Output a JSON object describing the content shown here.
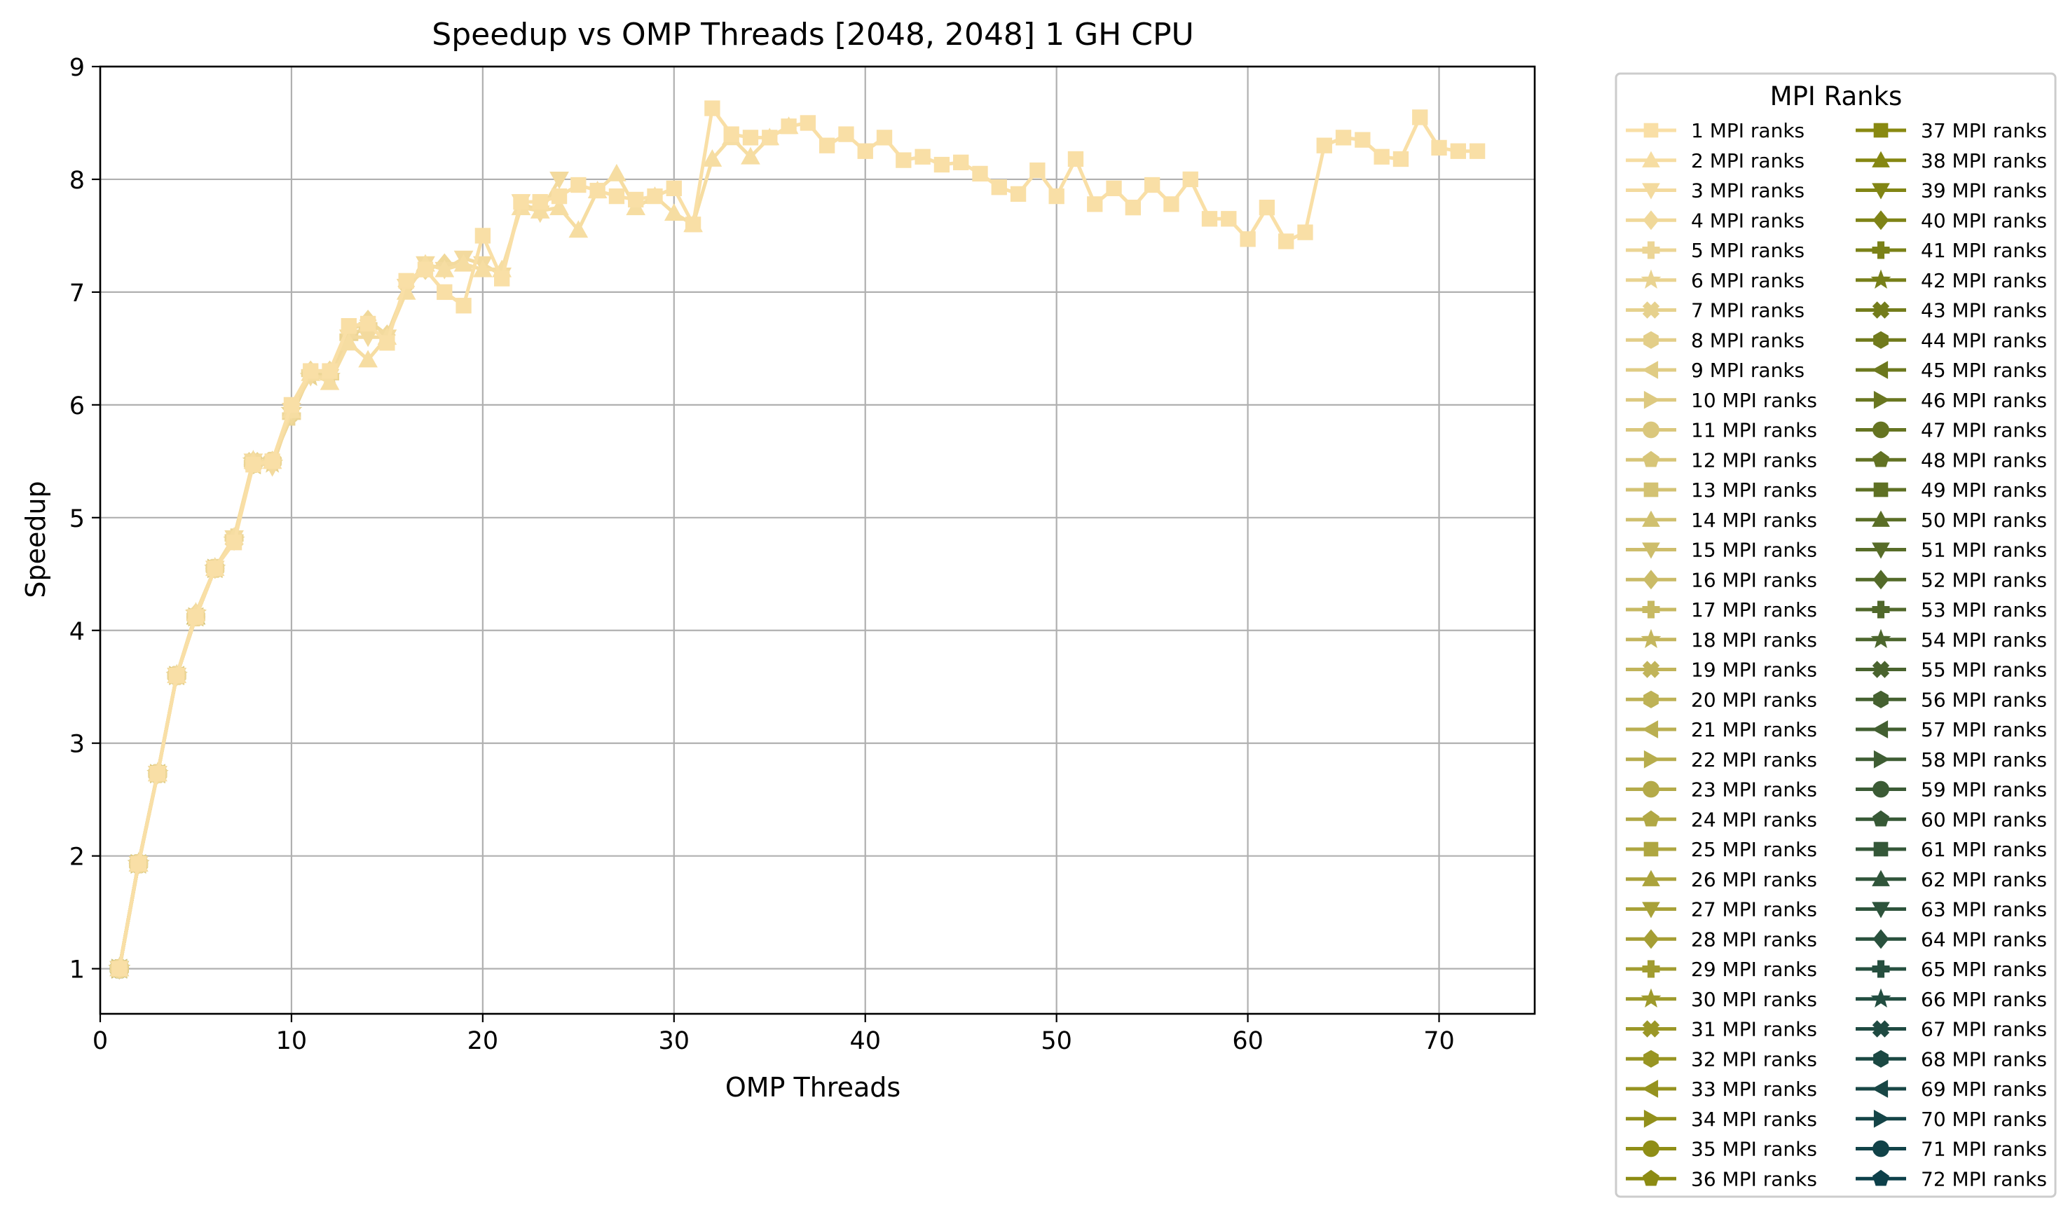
{
  "chart_data": {
    "type": "line",
    "title": "Speedup vs OMP Threads [2048, 2048] 1 GH CPU",
    "xlabel": "OMP Threads",
    "ylabel": "Speedup",
    "xlim": [
      0,
      75
    ],
    "ylim": [
      0.6,
      9.0
    ],
    "xticks": [
      0,
      10,
      20,
      30,
      40,
      50,
      60,
      70
    ],
    "yticks": [
      1,
      2,
      3,
      4,
      5,
      6,
      7,
      8,
      9
    ],
    "grid": true,
    "legend": {
      "title": "MPI Ranks",
      "placement": "outside right",
      "columns": 2
    },
    "series_colors": {
      "first": "#F9DFA6",
      "mid": "#8A8A10",
      "last": "#0D404A"
    },
    "series": [
      {
        "name": "1 MPI ranks",
        "x": [
          1,
          2,
          3,
          4,
          5,
          6,
          7,
          8,
          9,
          10,
          11,
          12,
          13,
          14,
          15,
          16,
          17,
          18,
          19,
          20,
          21,
          22,
          23,
          24,
          25,
          26,
          27,
          28,
          29,
          30,
          31,
          32,
          33,
          34,
          35,
          36,
          37,
          38,
          39,
          40,
          41,
          42,
          43,
          44,
          45,
          46,
          47,
          48,
          49,
          50,
          51,
          52,
          53,
          54,
          55,
          56,
          57,
          58,
          59,
          60,
          61,
          62,
          63,
          64,
          65,
          66,
          67,
          68,
          69,
          70,
          71,
          72
        ],
        "y": [
          1.0,
          1.93,
          2.73,
          3.6,
          4.12,
          4.55,
          4.78,
          5.47,
          5.5,
          6.0,
          6.3,
          6.3,
          6.7,
          6.72,
          6.55,
          7.1,
          7.2,
          7.0,
          6.88,
          7.5,
          7.12,
          7.8,
          7.8,
          7.85,
          7.95,
          7.9,
          7.85,
          7.82,
          7.85,
          7.92,
          7.6,
          8.63,
          8.4,
          8.37,
          8.37,
          8.47,
          8.5,
          8.3,
          8.4,
          8.25,
          8.37,
          8.17,
          8.2,
          8.13,
          8.15,
          8.05,
          7.93,
          7.87,
          8.08,
          7.85,
          8.18,
          7.78,
          7.92,
          7.75,
          7.95,
          7.78,
          8.0,
          7.65,
          7.65,
          7.47,
          7.75,
          7.45,
          7.53,
          8.3,
          8.37,
          8.35,
          8.2,
          8.18,
          8.55,
          8.28,
          8.25,
          8.25
        ]
      },
      {
        "name": "2 MPI ranks",
        "x": [
          1,
          2,
          3,
          4,
          5,
          6,
          7,
          8,
          9,
          10,
          11,
          12,
          13,
          14,
          15,
          16,
          17,
          18,
          19,
          20,
          21,
          22,
          23,
          24,
          25,
          26,
          27,
          28,
          29,
          30,
          31,
          32,
          33,
          34,
          35,
          36
        ],
        "y": [
          1.0,
          1.93,
          2.73,
          3.6,
          4.15,
          4.55,
          4.83,
          5.5,
          5.5,
          5.95,
          6.28,
          6.2,
          6.55,
          6.4,
          6.6,
          7.0,
          7.25,
          7.2,
          7.25,
          7.2,
          7.2,
          7.75,
          7.72,
          7.75,
          7.55,
          7.9,
          8.05,
          7.75,
          7.85,
          7.7,
          7.6,
          8.18,
          8.37,
          8.2,
          8.37,
          8.47
        ]
      },
      {
        "name": "3 MPI ranks",
        "x": [
          1,
          2,
          3,
          4,
          5,
          6,
          7,
          8,
          9,
          10,
          11,
          12,
          13,
          14,
          15,
          16,
          17,
          18,
          19,
          20,
          21,
          22,
          23,
          24
        ],
        "y": [
          1.0,
          1.93,
          2.73,
          3.6,
          4.12,
          4.55,
          4.82,
          5.5,
          5.45,
          5.95,
          6.25,
          6.25,
          6.6,
          6.6,
          6.6,
          7.05,
          7.25,
          7.2,
          7.3,
          7.25,
          7.15,
          7.8,
          7.7,
          8.0
        ]
      },
      {
        "name": "4 MPI ranks",
        "x": [
          1,
          2,
          3,
          4,
          5,
          6,
          7,
          8,
          9,
          10,
          11,
          12,
          13,
          14,
          15,
          16,
          17,
          18
        ],
        "y": [
          1.0,
          1.93,
          2.73,
          3.6,
          4.15,
          4.55,
          4.8,
          5.5,
          5.5,
          5.92,
          6.3,
          6.3,
          6.65,
          6.75,
          6.62,
          7.05,
          7.2,
          7.25
        ]
      },
      {
        "name": "5 MPI ranks",
        "x": [
          1,
          2,
          3,
          4,
          5,
          6,
          7,
          8,
          9,
          10,
          11,
          12,
          13,
          14
        ],
        "y": [
          1.0,
          1.93,
          2.73,
          3.6,
          4.12,
          4.55,
          4.82,
          5.48,
          5.5,
          5.9,
          6.28,
          6.25,
          6.6,
          6.7
        ]
      },
      {
        "name": "6 MPI ranks",
        "x": [
          1,
          2,
          3,
          4,
          5,
          6,
          7,
          8,
          9,
          10,
          11,
          12
        ],
        "y": [
          1.0,
          1.93,
          2.73,
          3.6,
          4.15,
          4.55,
          4.8,
          5.5,
          5.48,
          5.95,
          6.25,
          6.25
        ]
      },
      {
        "name": "7 MPI ranks",
        "x": [
          1,
          2,
          3,
          4,
          5,
          6,
          7,
          8,
          9,
          10
        ],
        "y": [
          1.0,
          1.93,
          2.73,
          3.6,
          4.12,
          4.55,
          4.8,
          5.5,
          5.5,
          5.93
        ]
      },
      {
        "name": "8 MPI ranks",
        "x": [
          1,
          2,
          3,
          4,
          5,
          6,
          7,
          8,
          9
        ],
        "y": [
          1.0,
          1.93,
          2.73,
          3.6,
          4.12,
          4.55,
          4.8,
          5.47,
          5.5
        ]
      },
      {
        "name": "9 MPI ranks",
        "x": [
          1,
          2,
          3,
          4,
          5,
          6,
          7,
          8
        ],
        "y": [
          1.0,
          1.93,
          2.73,
          3.6,
          4.12,
          4.55,
          4.8,
          5.47
        ]
      },
      {
        "name": "10 MPI ranks",
        "x": [
          1,
          2,
          3,
          4,
          5,
          6,
          7
        ],
        "y": [
          1.0,
          1.93,
          2.73,
          3.6,
          4.12,
          4.55,
          4.8
        ]
      },
      {
        "name": "11 MPI ranks",
        "x": [
          1,
          2,
          3,
          4,
          5,
          6
        ],
        "y": [
          1.0,
          1.93,
          2.73,
          3.6,
          4.12,
          4.55
        ]
      },
      {
        "name": "12 MPI ranks",
        "x": [
          1,
          2,
          3,
          4,
          5,
          6
        ],
        "y": [
          1.0,
          1.93,
          2.73,
          3.6,
          4.12,
          4.55
        ]
      },
      {
        "name": "13 MPI ranks",
        "x": [
          1,
          2,
          3,
          4,
          5
        ],
        "y": [
          1.0,
          1.93,
          2.73,
          3.6,
          4.12
        ]
      },
      {
        "name": "14 MPI ranks",
        "x": [
          1,
          2,
          3,
          4,
          5
        ],
        "y": [
          1.0,
          1.93,
          2.73,
          3.6,
          4.12
        ]
      },
      {
        "name": "15 MPI ranks",
        "x": [
          1,
          2,
          3,
          4
        ],
        "y": [
          1.0,
          1.93,
          2.73,
          3.6
        ]
      },
      {
        "name": "16 MPI ranks",
        "x": [
          1,
          2,
          3,
          4
        ],
        "y": [
          1.0,
          1.93,
          2.73,
          3.6
        ]
      },
      {
        "name": "17 MPI ranks",
        "x": [
          1,
          2,
          3,
          4
        ],
        "y": [
          1.0,
          1.93,
          2.73,
          3.6
        ]
      },
      {
        "name": "18 MPI ranks",
        "x": [
          1,
          2,
          3,
          4
        ],
        "y": [
          1.0,
          1.93,
          2.73,
          3.6
        ]
      },
      {
        "name": "19 MPI ranks",
        "x": [
          1,
          2,
          3
        ],
        "y": [
          1.0,
          1.93,
          2.73
        ]
      },
      {
        "name": "20 MPI ranks",
        "x": [
          1,
          2,
          3
        ],
        "y": [
          1.0,
          1.93,
          2.73
        ]
      },
      {
        "name": "21 MPI ranks",
        "x": [
          1,
          2,
          3
        ],
        "y": [
          1.0,
          1.93,
          2.73
        ]
      },
      {
        "name": "22 MPI ranks",
        "x": [
          1,
          2,
          3
        ],
        "y": [
          1.0,
          1.93,
          2.73
        ]
      },
      {
        "name": "23 MPI ranks",
        "x": [
          1,
          2,
          3
        ],
        "y": [
          1.0,
          1.93,
          2.73
        ]
      },
      {
        "name": "24 MPI ranks",
        "x": [
          1,
          2,
          3
        ],
        "y": [
          1.0,
          1.93,
          2.73
        ]
      },
      {
        "name": "25 MPI ranks",
        "x": [
          1,
          2
        ],
        "y": [
          1.0,
          1.93
        ]
      },
      {
        "name": "26 MPI ranks",
        "x": [
          1,
          2
        ],
        "y": [
          1.0,
          1.93
        ]
      },
      {
        "name": "27 MPI ranks",
        "x": [
          1,
          2
        ],
        "y": [
          1.0,
          1.93
        ]
      },
      {
        "name": "28 MPI ranks",
        "x": [
          1,
          2
        ],
        "y": [
          1.0,
          1.93
        ]
      },
      {
        "name": "29 MPI ranks",
        "x": [
          1,
          2
        ],
        "y": [
          1.0,
          1.93
        ]
      },
      {
        "name": "30 MPI ranks",
        "x": [
          1,
          2
        ],
        "y": [
          1.0,
          1.93
        ]
      },
      {
        "name": "31 MPI ranks",
        "x": [
          1,
          2
        ],
        "y": [
          1.0,
          1.93
        ]
      },
      {
        "name": "32 MPI ranks",
        "x": [
          1,
          2
        ],
        "y": [
          1.0,
          1.93
        ]
      },
      {
        "name": "33 MPI ranks",
        "x": [
          1,
          2
        ],
        "y": [
          1.0,
          1.93
        ]
      },
      {
        "name": "34 MPI ranks",
        "x": [
          1,
          2
        ],
        "y": [
          1.0,
          1.93
        ]
      },
      {
        "name": "35 MPI ranks",
        "x": [
          1,
          2
        ],
        "y": [
          1.0,
          1.93
        ]
      },
      {
        "name": "36 MPI ranks",
        "x": [
          1,
          2
        ],
        "y": [
          1.0,
          1.93
        ]
      },
      {
        "name": "37 MPI ranks",
        "x": [
          1
        ],
        "y": [
          1.0
        ]
      },
      {
        "name": "38 MPI ranks",
        "x": [
          1
        ],
        "y": [
          1.0
        ]
      },
      {
        "name": "39 MPI ranks",
        "x": [
          1
        ],
        "y": [
          1.0
        ]
      },
      {
        "name": "40 MPI ranks",
        "x": [
          1
        ],
        "y": [
          1.0
        ]
      },
      {
        "name": "41 MPI ranks",
        "x": [
          1
        ],
        "y": [
          1.0
        ]
      },
      {
        "name": "42 MPI ranks",
        "x": [
          1
        ],
        "y": [
          1.0
        ]
      },
      {
        "name": "43 MPI ranks",
        "x": [
          1
        ],
        "y": [
          1.0
        ]
      },
      {
        "name": "44 MPI ranks",
        "x": [
          1
        ],
        "y": [
          1.0
        ]
      },
      {
        "name": "45 MPI ranks",
        "x": [
          1
        ],
        "y": [
          1.0
        ]
      },
      {
        "name": "46 MPI ranks",
        "x": [
          1
        ],
        "y": [
          1.0
        ]
      },
      {
        "name": "47 MPI ranks",
        "x": [
          1
        ],
        "y": [
          1.0
        ]
      },
      {
        "name": "48 MPI ranks",
        "x": [
          1
        ],
        "y": [
          1.0
        ]
      },
      {
        "name": "49 MPI ranks",
        "x": [
          1
        ],
        "y": [
          1.0
        ]
      },
      {
        "name": "50 MPI ranks",
        "x": [
          1
        ],
        "y": [
          1.0
        ]
      },
      {
        "name": "51 MPI ranks",
        "x": [
          1
        ],
        "y": [
          1.0
        ]
      },
      {
        "name": "52 MPI ranks",
        "x": [
          1
        ],
        "y": [
          1.0
        ]
      },
      {
        "name": "53 MPI ranks",
        "x": [
          1
        ],
        "y": [
          1.0
        ]
      },
      {
        "name": "54 MPI ranks",
        "x": [
          1
        ],
        "y": [
          1.0
        ]
      },
      {
        "name": "55 MPI ranks",
        "x": [
          1
        ],
        "y": [
          1.0
        ]
      },
      {
        "name": "56 MPI ranks",
        "x": [
          1
        ],
        "y": [
          1.0
        ]
      },
      {
        "name": "57 MPI ranks",
        "x": [
          1
        ],
        "y": [
          1.0
        ]
      },
      {
        "name": "58 MPI ranks",
        "x": [
          1
        ],
        "y": [
          1.0
        ]
      },
      {
        "name": "59 MPI ranks",
        "x": [
          1
        ],
        "y": [
          1.0
        ]
      },
      {
        "name": "60 MPI ranks",
        "x": [
          1
        ],
        "y": [
          1.0
        ]
      },
      {
        "name": "61 MPI ranks",
        "x": [
          1
        ],
        "y": [
          1.0
        ]
      },
      {
        "name": "62 MPI ranks",
        "x": [
          1
        ],
        "y": [
          1.0
        ]
      },
      {
        "name": "63 MPI ranks",
        "x": [
          1
        ],
        "y": [
          1.0
        ]
      },
      {
        "name": "64 MPI ranks",
        "x": [
          1
        ],
        "y": [
          1.0
        ]
      },
      {
        "name": "65 MPI ranks",
        "x": [
          1
        ],
        "y": [
          1.0
        ]
      },
      {
        "name": "66 MPI ranks",
        "x": [
          1
        ],
        "y": [
          1.0
        ]
      },
      {
        "name": "67 MPI ranks",
        "x": [
          1
        ],
        "y": [
          1.0
        ]
      },
      {
        "name": "68 MPI ranks",
        "x": [
          1
        ],
        "y": [
          1.0
        ]
      },
      {
        "name": "69 MPI ranks",
        "x": [
          1
        ],
        "y": [
          1.0
        ]
      },
      {
        "name": "70 MPI ranks",
        "x": [
          1
        ],
        "y": [
          1.0
        ]
      },
      {
        "name": "71 MPI ranks",
        "x": [
          1
        ],
        "y": [
          1.0
        ]
      },
      {
        "name": "72 MPI ranks",
        "x": [
          1
        ],
        "y": [
          1.0
        ]
      }
    ]
  }
}
